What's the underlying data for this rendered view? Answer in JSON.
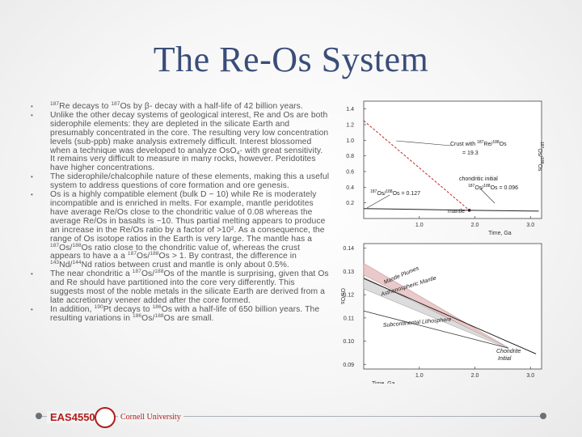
{
  "slide": {
    "title": "The Re-Os System"
  },
  "bullets": [
    {
      "parts": [
        {
          "t": "sup",
          "v": "187"
        },
        {
          "t": "text",
          "v": "Re decays to "
        },
        {
          "t": "sup",
          "v": "187"
        },
        {
          "t": "text",
          "v": "Os by β- decay with a half-life of 42 billion years."
        }
      ]
    },
    {
      "parts": [
        {
          "t": "text",
          "v": "Unlike the other decay systems of geological interest, Re and Os are both siderophile elements: they are depleted in the silicate Earth and presumably concentrated in the core. The resulting very low concentration levels (sub-ppb) make analysis extremely difficult. Interest blossomed when a technique was developed to analyze OsO"
        },
        {
          "t": "sub",
          "v": "4"
        },
        {
          "t": "text",
          "v": "- with great sensitivity. It remains very difficult to measure in many rocks, however. Peridotites have higher concentrations."
        }
      ]
    },
    {
      "parts": [
        {
          "t": "text",
          "v": "The siderophile/chalcophile nature of these elements, making this a useful system to address questions of core formation and ore genesis."
        }
      ]
    },
    {
      "parts": [
        {
          "t": "text",
          "v": "Os is a highly compatible element (bulk D ~ 10) while Re is moderately incompatible and is enriched in melts. For example, mantle peridotites have average Re/Os close to the chondritic value of 0.08 whereas the average Re/Os in basalts is ~10. Thus partial melting appears to produce an increase in the Re/Os ratio by a factor of >10². As a consequence, the range of Os isotope ratios in the Earth is very large. The mantle has a "
        },
        {
          "t": "sup",
          "v": "187"
        },
        {
          "t": "text",
          "v": "Os/"
        },
        {
          "t": "sup",
          "v": "188"
        },
        {
          "t": "text",
          "v": "Os ratio close to the chondritic value of, whereas the crust appears to have a a "
        },
        {
          "t": "sup",
          "v": "187"
        },
        {
          "t": "text",
          "v": "Os/"
        },
        {
          "t": "sup",
          "v": "188"
        },
        {
          "t": "text",
          "v": "Os > 1. By contrast, the difference in "
        },
        {
          "t": "sup",
          "v": "143"
        },
        {
          "t": "text",
          "v": "Nd/"
        },
        {
          "t": "sup",
          "v": "144"
        },
        {
          "t": "text",
          "v": "Nd ratios between crust and mantle is only about 0.5%."
        }
      ]
    },
    {
      "parts": [
        {
          "t": "text",
          "v": "The near chondritic a "
        },
        {
          "t": "sup",
          "v": "187"
        },
        {
          "t": "text",
          "v": "Os/"
        },
        {
          "t": "sup",
          "v": "188"
        },
        {
          "t": "text",
          "v": "Os of the mantle is surprising, given that Os and Re should have partitioned into the core very differently. This suggests most of the noble metals in the silicate Earth are derived from a late accretionary veneer added after the core formed."
        }
      ]
    },
    {
      "parts": [
        {
          "t": "text",
          "v": "In addition, "
        },
        {
          "t": "sup",
          "v": "190"
        },
        {
          "t": "text",
          "v": "Pt decays to "
        },
        {
          "t": "sup",
          "v": "186"
        },
        {
          "t": "text",
          "v": "Os with a half-life of 650 billion years. The resulting variations in "
        },
        {
          "t": "sup",
          "v": "186"
        },
        {
          "t": "text",
          "v": "Os/"
        },
        {
          "t": "sup",
          "v": "188"
        },
        {
          "t": "text",
          "v": "Os are small."
        }
      ]
    }
  ],
  "chart_data": [
    {
      "type": "line",
      "xlabel": "Time, Ga",
      "ylabel": "187Os/188Os",
      "xlim": [
        0,
        3.2
      ],
      "ylim": [
        0,
        1.5
      ],
      "x_ticks": [
        "1.0",
        "2.0",
        "3.0"
      ],
      "y_ticks": [
        "0.2",
        "0.4",
        "0.6",
        "0.8",
        "1.0",
        "1.2",
        "1.4"
      ],
      "series": [
        {
          "name": "crust",
          "x": [
            0,
            1.9
          ],
          "y": [
            1.25,
            0.105
          ]
        },
        {
          "name": "mantle",
          "x": [
            0,
            1.9
          ],
          "y": [
            0.127,
            0.105
          ]
        },
        {
          "name": "chondritic",
          "x": [
            1.9,
            3.15
          ],
          "y": [
            0.105,
            0.095
          ]
        }
      ],
      "annotations": {
        "crust_1": "Crust with ",
        "crust_sup_a": "187",
        "crust_2": "Re/",
        "crust_sup_b": "188",
        "crust_3": "Os",
        "crust_val": "= 19.3",
        "chondritic_a": "chondritic initial",
        "chondritic_sup_a": "187",
        "chondritic_b": "Os/",
        "chondritic_sup_b": "188",
        "chondritic_c": "Os = 0.096",
        "mantle_sup_a": "187",
        "mantle_b": "Os/",
        "mantle_sup_b": "188",
        "mantle_c": "Os = 0.127",
        "mantle_label": "mantle"
      }
    },
    {
      "type": "line",
      "xlabel": "Time, Ga",
      "ylabel": "Os/Os",
      "xlim": [
        0,
        3.2
      ],
      "ylim": [
        0.088,
        0.142
      ],
      "x_ticks": [
        "1.0",
        "2.0",
        "3.0"
      ],
      "y_ticks": [
        "0.09",
        "0.10",
        "0.11",
        "0.12",
        "0.13",
        "0.14"
      ],
      "series": [
        {
          "name": "Mantle Plumes",
          "x": [
            0,
            2.6
          ],
          "y": [
            0.131,
            0.097
          ]
        },
        {
          "name": "Asthenospheric Mantle",
          "x": [
            0,
            2.6
          ],
          "y": [
            0.125,
            0.097
          ]
        },
        {
          "name": "Subcontinental Lithosphere",
          "x": [
            0,
            2.6
          ],
          "y": [
            0.113,
            0.097
          ]
        },
        {
          "name": "Chondrite Initial",
          "x": [
            0,
            3.1
          ],
          "y": [
            0.127,
            0.0945
          ]
        }
      ],
      "annotations": {
        "plumes": "Mantle Plumes",
        "astheno": "Asthenospheric Mantle",
        "sclm": "Subcontinental Lithosphere",
        "chondrite_1": "Chondrite",
        "chondrite_2": "Initial"
      }
    }
  ],
  "footer": {
    "course": "EAS4550",
    "university": "Cornell University"
  }
}
